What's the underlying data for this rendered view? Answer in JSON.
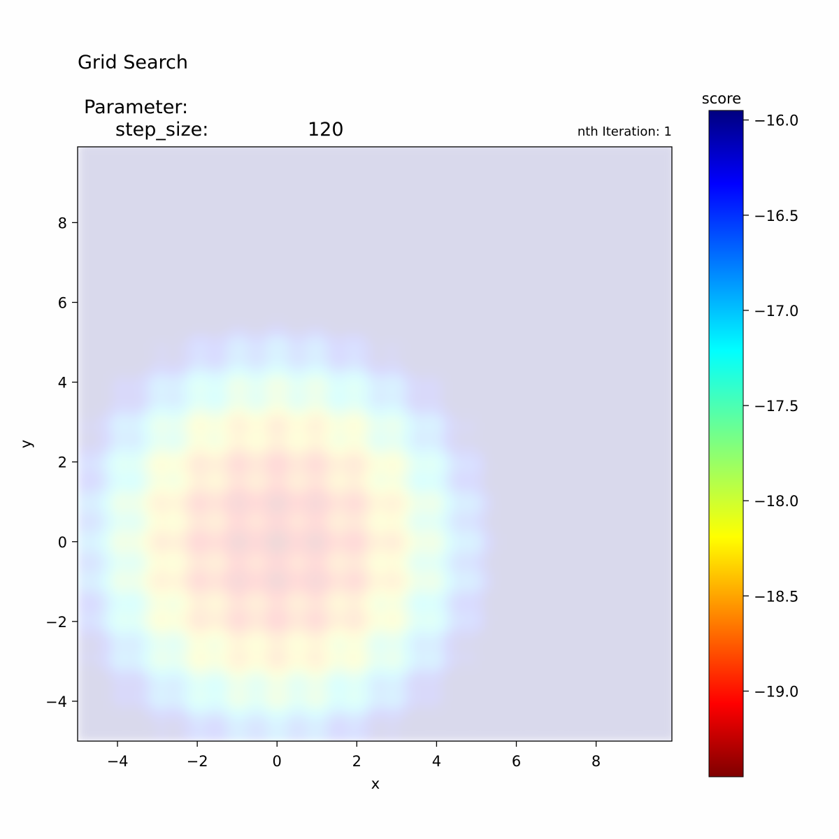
{
  "header": {
    "title": "Grid Search",
    "parameter_heading": "Parameter:",
    "parameter_name": "step_size:",
    "parameter_value": "120",
    "iteration_label": "nth Iteration: 1"
  },
  "chart_data": {
    "type": "heatmap",
    "title": "Grid Search",
    "xlabel": "x",
    "ylabel": "y",
    "xlim": [
      -5,
      9.9
    ],
    "ylim": [
      -5,
      9.9
    ],
    "x_ticks": [
      -4,
      -2,
      0,
      2,
      4,
      6,
      8
    ],
    "y_ticks": [
      -4,
      -2,
      0,
      2,
      4,
      6,
      8
    ],
    "x_tick_labels": [
      "−4",
      "−2",
      "0",
      "2",
      "4",
      "6",
      "8"
    ],
    "y_tick_labels": [
      "−4",
      "−2",
      "0",
      "2",
      "4",
      "6",
      "8"
    ],
    "grid": false,
    "colormap": "jet",
    "surface_opacity": 0.15,
    "colorbar": {
      "label": "score",
      "range": [
        -19.45,
        -15.95
      ],
      "ticks": [
        -16.0,
        -16.5,
        -17.0,
        -17.5,
        -18.0,
        -18.5,
        -19.0
      ],
      "tick_labels": [
        "−16.0",
        "−16.5",
        "−17.0",
        "−17.5",
        "−18.0",
        "−18.5",
        "−19.0"
      ]
    },
    "grid_points_x": [
      -4,
      -3,
      -2,
      -1,
      0,
      1,
      2,
      3,
      4,
      5,
      6,
      7,
      8,
      9
    ],
    "grid_points_y": [
      -4,
      -3,
      -2,
      -1,
      0,
      1,
      2,
      3,
      4,
      5,
      6,
      7,
      8,
      9
    ],
    "minimum": {
      "x": 0,
      "y": 0,
      "score": -15.95
    }
  }
}
